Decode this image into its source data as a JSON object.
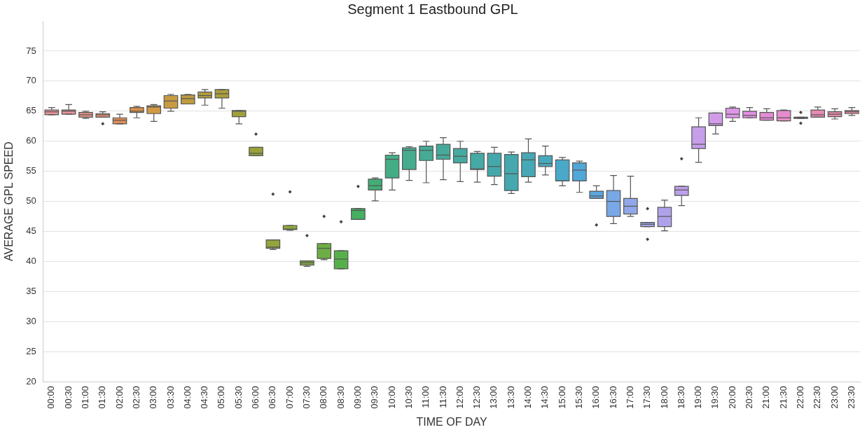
{
  "chart_data": {
    "type": "box",
    "title": "Segment 1 Eastbound GPL",
    "xlabel": "TIME OF DAY",
    "ylabel": "AVERAGE GPL SPEED",
    "categories": [
      "00:00",
      "00:30",
      "01:00",
      "01:30",
      "02:00",
      "02:30",
      "03:00",
      "03:30",
      "04:00",
      "04:30",
      "05:00",
      "05:30",
      "06:00",
      "06:30",
      "07:00",
      "07:30",
      "08:00",
      "08:30",
      "09:00",
      "09:30",
      "10:00",
      "10:30",
      "11:00",
      "11:30",
      "12:00",
      "12:30",
      "13:00",
      "13:30",
      "14:00",
      "14:30",
      "15:00",
      "15:30",
      "16:00",
      "16:30",
      "17:00",
      "17:30",
      "18:00",
      "18:30",
      "19:00",
      "19:30",
      "20:00",
      "20:30",
      "21:00",
      "21:30",
      "22:00",
      "22:30",
      "23:00",
      "23:30"
    ],
    "boxes": [
      {
        "low": 64.4,
        "q1": 64.4,
        "median": 64.9,
        "q3": 65.2,
        "high": 65.6
      },
      {
        "low": 64.5,
        "q1": 64.5,
        "median": 65.0,
        "q3": 65.2,
        "high": 66.1
      },
      {
        "low": 63.8,
        "q1": 64.0,
        "median": 64.4,
        "q3": 64.8,
        "high": 65.0
      },
      {
        "low": 64.0,
        "q1": 64.0,
        "median": 64.4,
        "q3": 64.6,
        "high": 64.9,
        "outliers": [
          62.9
        ]
      },
      {
        "low": 62.9,
        "q1": 62.9,
        "median": 63.5,
        "q3": 63.9,
        "high": 64.5
      },
      {
        "low": 63.9,
        "q1": 64.8,
        "median": 65.0,
        "q3": 65.6,
        "high": 65.8
      },
      {
        "low": 63.3,
        "q1": 64.6,
        "median": 65.7,
        "q3": 65.9,
        "high": 66.1
      },
      {
        "low": 65.0,
        "q1": 65.5,
        "median": 66.7,
        "q3": 67.6,
        "high": 67.8
      },
      {
        "low": 66.2,
        "q1": 66.2,
        "median": 67.1,
        "q3": 67.7,
        "high": 67.8
      },
      {
        "low": 66.0,
        "q1": 67.2,
        "median": 67.6,
        "q3": 68.2,
        "high": 68.6
      },
      {
        "low": 65.5,
        "q1": 67.2,
        "median": 67.9,
        "q3": 68.6,
        "high": 68.6
      },
      {
        "low": 62.9,
        "q1": 64.1,
        "median": 65.0,
        "q3": 65.1,
        "high": 65.1
      },
      {
        "low": 57.6,
        "q1": 57.6,
        "median": 58.0,
        "q3": 59.0,
        "high": 59.0,
        "outliers": [
          61.2
        ]
      },
      {
        "low": 42.0,
        "q1": 42.2,
        "median": 42.4,
        "q3": 43.6,
        "high": 43.6,
        "outliers": [
          51.2
        ]
      },
      {
        "low": 45.2,
        "q1": 45.3,
        "median": 45.4,
        "q3": 46.0,
        "high": 46.0,
        "outliers": [
          51.6
        ]
      },
      {
        "low": 39.2,
        "q1": 39.4,
        "median": 39.8,
        "q3": 40.1,
        "high": 40.1,
        "outliers": [
          44.3
        ]
      },
      {
        "low": 40.3,
        "q1": 40.5,
        "median": 42.2,
        "q3": 43.0,
        "high": 43.0,
        "outliers": [
          47.5
        ]
      },
      {
        "low": 38.8,
        "q1": 38.8,
        "median": 40.4,
        "q3": 41.8,
        "high": 41.8,
        "outliers": [
          46.6
        ]
      },
      {
        "low": 47.0,
        "q1": 47.0,
        "median": 48.5,
        "q3": 48.8,
        "high": 48.8,
        "outliers": [
          52.5
        ]
      },
      {
        "low": 50.1,
        "q1": 51.9,
        "median": 52.6,
        "q3": 53.7,
        "high": 53.9
      },
      {
        "low": 51.9,
        "q1": 53.9,
        "median": 57.0,
        "q3": 57.7,
        "high": 58.1
      },
      {
        "low": 53.5,
        "q1": 55.3,
        "median": 58.5,
        "q3": 58.9,
        "high": 59.1
      },
      {
        "low": 53.1,
        "q1": 56.8,
        "median": 58.5,
        "q3": 59.2,
        "high": 60.0
      },
      {
        "low": 53.6,
        "q1": 57.0,
        "median": 57.7,
        "q3": 59.5,
        "high": 60.6
      },
      {
        "low": 53.3,
        "q1": 56.4,
        "median": 57.5,
        "q3": 58.8,
        "high": 60.0
      },
      {
        "low": 53.2,
        "q1": 55.3,
        "median": 55.4,
        "q3": 58.0,
        "high": 58.3
      },
      {
        "low": 52.8,
        "q1": 54.2,
        "median": 55.8,
        "q3": 58.0,
        "high": 59.0
      },
      {
        "low": 51.3,
        "q1": 51.8,
        "median": 54.6,
        "q3": 57.8,
        "high": 58.2
      },
      {
        "low": 53.2,
        "q1": 54.1,
        "median": 56.9,
        "q3": 58.1,
        "high": 60.4
      },
      {
        "low": 54.4,
        "q1": 55.8,
        "median": 56.3,
        "q3": 57.6,
        "high": 59.2
      },
      {
        "low": 52.6,
        "q1": 53.4,
        "median": 53.4,
        "q3": 56.9,
        "high": 57.3
      },
      {
        "low": 51.5,
        "q1": 53.4,
        "median": 55.2,
        "q3": 56.4,
        "high": 56.7
      },
      {
        "low": 50.5,
        "q1": 50.5,
        "median": 50.9,
        "q3": 51.7,
        "high": 52.6,
        "outliers": [
          46.1
        ]
      },
      {
        "low": 46.3,
        "q1": 47.5,
        "median": 50.0,
        "q3": 51.8,
        "high": 54.3
      },
      {
        "low": 47.5,
        "q1": 47.9,
        "median": 49.2,
        "q3": 50.5,
        "high": 54.2
      },
      {
        "low": 45.8,
        "q1": 45.8,
        "median": 46.2,
        "q3": 46.5,
        "high": 46.5,
        "outliers": [
          48.8,
          43.7
        ]
      },
      {
        "low": 45.1,
        "q1": 45.8,
        "median": 47.5,
        "q3": 49.0,
        "high": 50.2
      },
      {
        "low": 49.3,
        "q1": 51.0,
        "median": 51.9,
        "q3": 52.5,
        "high": 52.5,
        "outliers": [
          57.1
        ]
      },
      {
        "low": 56.5,
        "q1": 58.8,
        "median": 59.5,
        "q3": 62.4,
        "high": 63.9
      },
      {
        "low": 61.2,
        "q1": 62.6,
        "median": 62.9,
        "q3": 64.7,
        "high": 64.7
      },
      {
        "low": 63.3,
        "q1": 63.9,
        "median": 64.5,
        "q3": 65.5,
        "high": 65.7
      },
      {
        "low": 63.9,
        "q1": 63.9,
        "median": 64.3,
        "q3": 65.0,
        "high": 65.6
      },
      {
        "low": 63.5,
        "q1": 63.5,
        "median": 63.9,
        "q3": 64.8,
        "high": 65.4
      },
      {
        "low": 63.4,
        "q1": 63.4,
        "median": 63.9,
        "q3": 65.1,
        "high": 65.2
      },
      {
        "low": 63.8,
        "q1": 63.8,
        "median": 63.9,
        "q3": 64.0,
        "high": 64.0,
        "outliers": [
          64.8,
          63.0
        ]
      },
      {
        "low": 64.0,
        "q1": 64.0,
        "median": 64.4,
        "q3": 65.2,
        "high": 65.7
      },
      {
        "low": 63.7,
        "q1": 64.1,
        "median": 64.5,
        "q3": 64.9,
        "high": 65.4
      },
      {
        "low": 64.3,
        "q1": 64.6,
        "median": 64.9,
        "q3": 65.1,
        "high": 65.6
      }
    ],
    "colors": [
      "#e8939a",
      "#e8949a",
      "#e89585",
      "#e8927a",
      "#e08c55",
      "#dc9248",
      "#d29a46",
      "#c89a42",
      "#bd9c40",
      "#b39e3e",
      "#aa9e3c",
      "#a0a03a",
      "#98a23a",
      "#94a43c",
      "#8ea83e",
      "#82aa40",
      "#6cae44",
      "#56b04a",
      "#44b060",
      "#42ae76",
      "#44ad85",
      "#46ac8e",
      "#46ab94",
      "#46aa9a",
      "#46aaa0",
      "#45a9a5",
      "#44a8aa",
      "#44a8ae",
      "#46a8b4",
      "#48a8bc",
      "#4aa8c8",
      "#50a8d8",
      "#5aa8e0",
      "#78a8e6",
      "#90a8e8",
      "#a0a6ea",
      "#b0a2ea",
      "#bca0ea",
      "#c69eea",
      "#d09ce8",
      "#dc96e6",
      "#e290e2",
      "#e48cd8",
      "#e68ccc",
      "#e68cc0",
      "#e68cb4",
      "#e68ea8",
      "#e6909e"
    ],
    "ylim": [
      20,
      80
    ],
    "yticks": [
      20,
      25,
      30,
      35,
      40,
      45,
      50,
      55,
      60,
      65,
      70,
      75
    ],
    "grid": "y",
    "marker": "diamond",
    "legend": false
  }
}
